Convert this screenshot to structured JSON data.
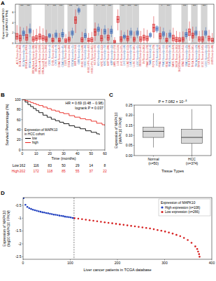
{
  "chart_data": [
    {
      "panel": "A",
      "type": "box",
      "y_label": [
        "Expression of MAPK10",
        "log2 (MAPK10 TPM)"
      ],
      "categories": [
        "ACC.Tumor (n=79)",
        "BLCA.Tumor (n=408)",
        "BLCA.Normal (n=19)",
        "BRCA.Tumor (n=1093)",
        "BRCA.Normal (n=112)",
        "BRCA-Basal.Tumor (n=190)",
        "BRCA-Her2.Tumor (n=82)",
        "BRCA-LumA.Tumor (n=564)",
        "BRCA-LumB.Tumor (n=217)",
        "CESC.Tumor (n=304)",
        "CESC.Normal (n=3)",
        "CHOL.Tumor (n=36)",
        "CHOL.Normal (n=9)",
        "COAD.Tumor (n=457)",
        "COAD.Normal (n=41)",
        "DLBC.Tumor (n=48)",
        "ESCA.Tumor (n=184)",
        "ESCA.Normal (n=11)",
        "GBM.Tumor (n=153)",
        "GBM.Normal (n=5)",
        "HNSC.Tumor (n=520)",
        "HNSC.Normal (n=44)",
        "HNSC-HPV+.Tumor (n=97)",
        "HNSC-HPV-.Tumor (n=421)",
        "KICH.Tumor (n=66)",
        "KICH.Normal (n=25)",
        "KIRC.Tumor (n=533)",
        "KIRC.Normal (n=72)",
        "KIRP.Tumor (n=290)",
        "KIRP.Normal (n=32)",
        "LAML.Tumor (n=173)",
        "LGG.Tumor (n=516)",
        "LIHC.Tumor (n=371)",
        "LIHC.Normal (n=50)",
        "LUAD.Tumor (n=515)",
        "LUAD.Normal (n=59)",
        "LUSC.Tumor (n=501)",
        "LUSC.Normal (n=51)",
        "MESO.Tumor (n=87)",
        "OV.Tumor (n=303)",
        "PAAD.Tumor (n=178)",
        "PAAD.Normal (n=4)",
        "PCPG.Tumor (n=179)",
        "PCPG.Normal (n=3)",
        "PRAD.Tumor (n=497)",
        "PRAD.Normal (n=52)",
        "READ.Tumor (n=166)",
        "READ.Normal (n=10)",
        "SARC.Tumor (n=259)",
        "SKCM.Tumor (n=103)",
        "SKCM.Metastasis (n=368)",
        "STAD.Tumor (n=415)",
        "STAD.Normal (n=35)",
        "TGCT.Tumor (n=150)",
        "THCA.Tumor (n=501)",
        "THCA.Normal (n=59)",
        "THYM.Tumor (n=120)",
        "UCEC.Tumor (n=545)",
        "UCEC.Normal (n=35)",
        "UCS.Tumor (n=57)",
        "UVM.Tumor (n=80)"
      ],
      "box_stats": [
        [
          0.2,
          0.8,
          1.3,
          1.9,
          3.5
        ],
        [
          0,
          0.5,
          1.0,
          1.6,
          3.2
        ],
        [
          0.8,
          1.5,
          2.0,
          2.4,
          3.0
        ],
        [
          0,
          0.6,
          1.1,
          1.7,
          3.3
        ],
        [
          1.2,
          2.0,
          2.4,
          2.8,
          3.8
        ],
        [
          0,
          0.4,
          0.8,
          1.3,
          2.6
        ],
        [
          0,
          0.6,
          1.0,
          1.5,
          2.8
        ],
        [
          0.1,
          0.8,
          1.3,
          1.8,
          3.3
        ],
        [
          0,
          0.6,
          1.0,
          1.5,
          2.9
        ],
        [
          0,
          0.4,
          0.8,
          1.3,
          2.6
        ],
        [
          1.0,
          1.2,
          1.5,
          1.8,
          2.0
        ],
        [
          0,
          0.3,
          0.6,
          1.0,
          1.8
        ],
        [
          0.8,
          1.2,
          1.6,
          2.0,
          2.6
        ],
        [
          0,
          0.3,
          0.6,
          1.0,
          2.0
        ],
        [
          0.8,
          1.3,
          1.7,
          2.1,
          2.8
        ],
        [
          0,
          0.2,
          0.5,
          0.9,
          1.8
        ],
        [
          0,
          0.4,
          0.8,
          1.2,
          2.3
        ],
        [
          1.0,
          1.6,
          2.0,
          2.4,
          3.0
        ],
        [
          2.0,
          3.8,
          4.5,
          5.1,
          6.5
        ],
        [
          5.5,
          6.0,
          6.3,
          6.6,
          7.0
        ],
        [
          0,
          0.3,
          0.7,
          1.1,
          2.2
        ],
        [
          0.6,
          1.1,
          1.5,
          1.9,
          2.8
        ],
        [
          0,
          0.3,
          0.6,
          1.0,
          2.0
        ],
        [
          0,
          0.3,
          0.7,
          1.1,
          2.2
        ],
        [
          0.5,
          1.5,
          2.2,
          2.8,
          4.0
        ],
        [
          1.5,
          2.3,
          2.7,
          3.1,
          3.8
        ],
        [
          0,
          0.5,
          1.0,
          1.5,
          2.8
        ],
        [
          1.0,
          1.8,
          2.3,
          2.7,
          3.5
        ],
        [
          0,
          0.6,
          1.1,
          1.6,
          2.9
        ],
        [
          1.2,
          1.9,
          2.3,
          2.7,
          3.4
        ],
        [
          0,
          0.1,
          0.3,
          0.6,
          1.2
        ],
        [
          2.5,
          4.0,
          4.6,
          5.2,
          6.5
        ],
        [
          0,
          0.4,
          0.8,
          1.3,
          2.5
        ],
        [
          0.6,
          1.0,
          1.3,
          1.6,
          2.2
        ],
        [
          0,
          0.5,
          0.9,
          1.4,
          2.6
        ],
        [
          1.0,
          1.6,
          2.0,
          2.4,
          3.0
        ],
        [
          0,
          0.4,
          0.8,
          1.2,
          2.3
        ],
        [
          1.0,
          1.6,
          2.0,
          2.4,
          3.0
        ],
        [
          0,
          0.4,
          0.8,
          1.3,
          2.4
        ],
        [
          0,
          0.6,
          1.1,
          1.6,
          2.9
        ],
        [
          0,
          0.5,
          0.9,
          1.4,
          2.6
        ],
        [
          1.0,
          1.3,
          1.6,
          1.9,
          2.2
        ],
        [
          1.0,
          2.2,
          3.0,
          3.7,
          5.2
        ],
        [
          2.0,
          2.4,
          2.8,
          3.2,
          3.5
        ],
        [
          0.2,
          0.9,
          1.4,
          1.9,
          3.2
        ],
        [
          0.8,
          1.4,
          1.8,
          2.2,
          3.0
        ],
        [
          0,
          0.3,
          0.6,
          1.0,
          2.0
        ],
        [
          0.8,
          1.2,
          1.6,
          2.0,
          2.6
        ],
        [
          0,
          0.5,
          1.0,
          1.6,
          3.0
        ],
        [
          0,
          0.3,
          0.7,
          1.2,
          2.4
        ],
        [
          0,
          0.3,
          0.6,
          1.1,
          2.2
        ],
        [
          0,
          0.4,
          0.8,
          1.2,
          2.3
        ],
        [
          0.8,
          1.3,
          1.7,
          2.1,
          2.8
        ],
        [
          0.5,
          1.5,
          2.2,
          2.8,
          4.2
        ],
        [
          0.3,
          1.0,
          1.5,
          2.0,
          3.2
        ],
        [
          1.0,
          1.6,
          2.0,
          2.4,
          3.2
        ],
        [
          0,
          0.4,
          0.8,
          1.3,
          2.4
        ],
        [
          0,
          0.4,
          0.8,
          1.3,
          2.5
        ],
        [
          1.0,
          1.6,
          2.0,
          2.4,
          3.1
        ],
        [
          0,
          0.5,
          0.9,
          1.4,
          2.6
        ],
        [
          0,
          0.3,
          0.6,
          1.0,
          2.0
        ]
      ],
      "colors": [
        "#d7191c",
        "#d7191c",
        "#2b5fb4",
        "#d7191c",
        "#2b5fb4",
        "#d7191c",
        "#d7191c",
        "#d7191c",
        "#d7191c",
        "#d7191c",
        "#2b5fb4",
        "#d7191c",
        "#2b5fb4",
        "#d7191c",
        "#2b5fb4",
        "#d7191c",
        "#d7191c",
        "#2b5fb4",
        "#d7191c",
        "#2b5fb4",
        "#d7191c",
        "#2b5fb4",
        "#d7191c",
        "#d7191c",
        "#d7191c",
        "#2b5fb4",
        "#d7191c",
        "#2b5fb4",
        "#d7191c",
        "#2b5fb4",
        "#d7191c",
        "#d7191c",
        "#d7191c",
        "#2b5fb4",
        "#d7191c",
        "#2b5fb4",
        "#d7191c",
        "#2b5fb4",
        "#d7191c",
        "#d7191c",
        "#d7191c",
        "#2b5fb4",
        "#d7191c",
        "#2b5fb4",
        "#d7191c",
        "#2b5fb4",
        "#d7191c",
        "#2b5fb4",
        "#d7191c",
        "#d7191c",
        "#d7191c",
        "#d7191c",
        "#2b5fb4",
        "#d7191c",
        "#d7191c",
        "#2b5fb4",
        "#d7191c",
        "#d7191c",
        "#2b5fb4",
        "#d7191c",
        "#d7191c"
      ],
      "significance": [
        null,
        "***",
        null,
        "***",
        null,
        null,
        null,
        null,
        null,
        "*",
        null,
        "***",
        null,
        "***",
        null,
        null,
        "***",
        null,
        "**",
        null,
        "***",
        null,
        null,
        null,
        "*",
        null,
        "***",
        null,
        "***",
        null,
        null,
        null,
        "***",
        null,
        "***",
        null,
        "***",
        null,
        null,
        null,
        null,
        null,
        null,
        null,
        "*",
        null,
        "***",
        null,
        null,
        null,
        null,
        "***",
        null,
        null,
        "***",
        null,
        null,
        "***",
        null,
        null,
        null
      ],
      "ylim": [
        0,
        7.5
      ],
      "yticks": [
        0,
        2,
        4,
        6
      ]
    },
    {
      "panel": "B",
      "type": "line",
      "line_style": "step",
      "x_label": "Time (months)",
      "y_label": "Survival Percentage (%)",
      "xlim": [
        0,
        60
      ],
      "xticks": [
        0,
        10,
        20,
        30,
        40,
        50,
        60
      ],
      "ylim": [
        0,
        100
      ],
      "yticks": [
        0,
        20,
        40,
        60,
        80,
        100
      ],
      "annotations": [
        "HR = 0.69 (0.48 − 0.98)",
        "logrank P = 0.037"
      ],
      "legend_title": [
        "Expression of MAPK10",
        "in HCC cohort"
      ],
      "legend": "bottom-left",
      "series": [
        {
          "name": "low",
          "color": "#000000",
          "x": [
            0,
            2,
            4,
            6,
            8,
            10,
            12,
            15,
            18,
            21,
            24,
            27,
            30,
            34,
            38,
            42,
            46,
            50,
            54,
            56
          ],
          "values": [
            100,
            95,
            90,
            86,
            82,
            78,
            74,
            69,
            65,
            61,
            58,
            55,
            52,
            48,
            45,
            42,
            38,
            35,
            32,
            30
          ]
        },
        {
          "name": "high",
          "color": "#e8221c",
          "x": [
            0,
            2,
            4,
            6,
            8,
            10,
            12,
            15,
            18,
            21,
            24,
            27,
            30,
            34,
            38,
            42,
            46,
            50,
            54,
            58,
            60
          ],
          "values": [
            100,
            98,
            96,
            94,
            92,
            90,
            88,
            85,
            82,
            79,
            77,
            74,
            72,
            68,
            65,
            62,
            60,
            57,
            53,
            50,
            48
          ]
        }
      ],
      "risk_table": [
        {
          "name": "Low",
          "values": [
            162,
            116,
            83,
            50,
            29,
            14,
            8
          ]
        },
        {
          "name": "High",
          "values": [
            202,
            172,
            118,
            85,
            55,
            37,
            22
          ]
        }
      ]
    },
    {
      "panel": "C",
      "type": "box",
      "title": "P = 7.082 × 10⁻⁵",
      "x_label": "Tissue Types",
      "y_label": [
        "Expression of MAPK10",
        "(MAPK10 FPKM)"
      ],
      "categories": [
        "Normal (n=50)",
        "HCC (n=374)"
      ],
      "box_stats": [
        [
          0.04,
          0.09,
          0.12,
          0.14,
          0.21
        ],
        [
          0.0,
          0.06,
          0.09,
          0.13,
          0.23
        ]
      ],
      "color": "#d9d9d9",
      "ylim": [
        0,
        0.25
      ],
      "yticks": [
        {
          "value": 0,
          "label": "0.00"
        },
        0.05,
        {
          "value": 0.1,
          "label": "0.10"
        },
        0.15,
        {
          "value": 0.2,
          "label": "0.20"
        },
        0.25
      ]
    },
    {
      "panel": "D",
      "type": "scatter",
      "marker": "circle",
      "x_label": "Liver cancer patients in TCGA database",
      "y_label": [
        "Expression of MAPK10",
        "(log10 MAPK10 FPKM)"
      ],
      "xlim": [
        0,
        400
      ],
      "xticks": [
        0,
        100,
        200,
        300,
        400
      ],
      "ylim": [
        -2.6,
        -0.2
      ],
      "yticks": [
        -2.5,
        -2,
        -1.5,
        -1,
        -0.5
      ],
      "cutoff": 108,
      "legend_title": "Expression of MAPK10",
      "legend": "top-right",
      "series": [
        {
          "name": "High expression (n=108)",
          "color": "#1f3fbf",
          "x": [
            1,
            5,
            9,
            13,
            17,
            21,
            25,
            29,
            33,
            37,
            41,
            45,
            49,
            53,
            57,
            61,
            65,
            69,
            73,
            77,
            81,
            85,
            89,
            93,
            97,
            101,
            105,
            108
          ],
          "values": [
            -0.22,
            -0.48,
            -0.56,
            -0.61,
            -0.64,
            -0.67,
            -0.69,
            -0.71,
            -0.73,
            -0.75,
            -0.77,
            -0.78,
            -0.8,
            -0.81,
            -0.83,
            -0.84,
            -0.86,
            -0.87,
            -0.88,
            -0.9,
            -0.91,
            -0.92,
            -0.94,
            -0.95,
            -0.96,
            -0.97,
            -0.99,
            -1.0
          ]
        },
        {
          "name": "Low expression (n=266)",
          "color": "#d62020",
          "x": [
            109,
            117,
            125,
            133,
            141,
            149,
            157,
            165,
            173,
            181,
            189,
            197,
            205,
            213,
            221,
            229,
            237,
            245,
            253,
            261,
            269,
            277,
            285,
            293,
            301,
            309,
            317,
            325,
            333,
            341,
            349,
            357,
            365,
            369,
            371,
            373,
            374
          ],
          "values": [
            -1.0,
            -1.02,
            -1.04,
            -1.06,
            -1.08,
            -1.1,
            -1.12,
            -1.14,
            -1.16,
            -1.18,
            -1.2,
            -1.22,
            -1.24,
            -1.26,
            -1.28,
            -1.3,
            -1.32,
            -1.34,
            -1.36,
            -1.38,
            -1.4,
            -1.43,
            -1.46,
            -1.49,
            -1.52,
            -1.56,
            -1.6,
            -1.65,
            -1.7,
            -1.77,
            -1.85,
            -1.96,
            -2.1,
            -2.2,
            -2.3,
            -2.4,
            -2.5
          ]
        }
      ]
    }
  ]
}
